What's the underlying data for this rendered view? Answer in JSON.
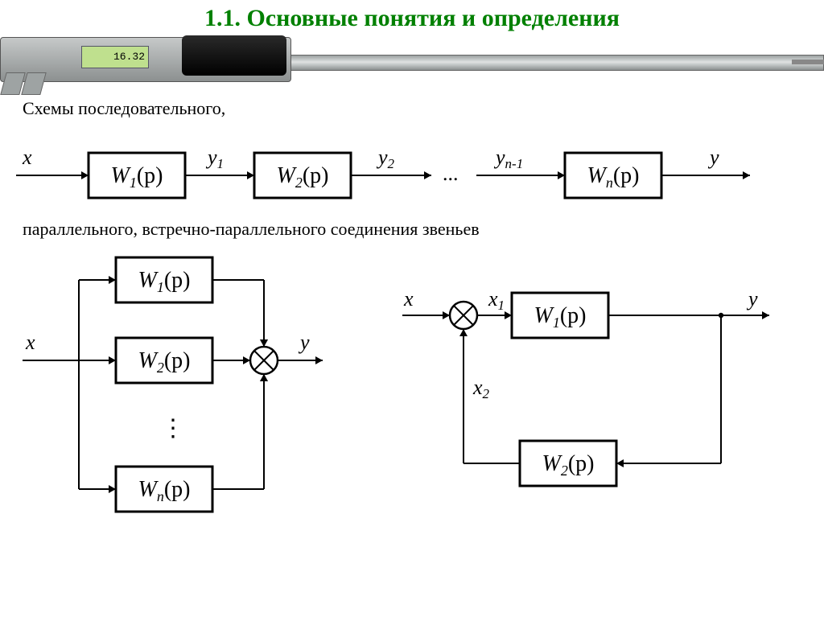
{
  "title": "1.1. Основные понятия и определения",
  "caption_serial": "Схемы последовательного,",
  "caption_parallel": "параллельного,  встречно-параллельного соединения звеньев",
  "caliper_reading": "16.32",
  "colors": {
    "title": "#008000",
    "stroke": "#000000",
    "background": "#ffffff"
  },
  "serial": {
    "input": "x",
    "output": "y",
    "blocks": [
      {
        "label": "W",
        "sub": "1",
        "arg": "(p)",
        "out": "y",
        "out_sub": "1"
      },
      {
        "label": "W",
        "sub": "2",
        "arg": "(p)",
        "out": "y",
        "out_sub": "2"
      }
    ],
    "ellipsis": "...",
    "pre_last": {
      "label": "y",
      "sub": "n-1"
    },
    "last": {
      "label": "W",
      "sub": "n",
      "arg": "(p)"
    }
  },
  "parallel": {
    "input": "x",
    "output": "y",
    "blocks": [
      {
        "label": "W",
        "sub": "1",
        "arg": "(p)"
      },
      {
        "label": "W",
        "sub": "2",
        "arg": "(p)"
      },
      {
        "label": "W",
        "sub": "n",
        "arg": "(p)"
      }
    ],
    "vdots": "⋮"
  },
  "feedback": {
    "input": "x",
    "output": "y",
    "forward": {
      "label": "W",
      "sub": "1",
      "arg": "(p)"
    },
    "back": {
      "label": "W",
      "sub": "2",
      "arg": "(p)"
    },
    "x1": {
      "label": "x",
      "sub": "1"
    },
    "x2": {
      "label": "x",
      "sub": "2"
    }
  },
  "style": {
    "block_w": 120,
    "block_h": 56,
    "block_stroke_w": 3,
    "font_block": 28,
    "font_sub": 18,
    "font_signal": 26,
    "arrow_len": 14
  }
}
